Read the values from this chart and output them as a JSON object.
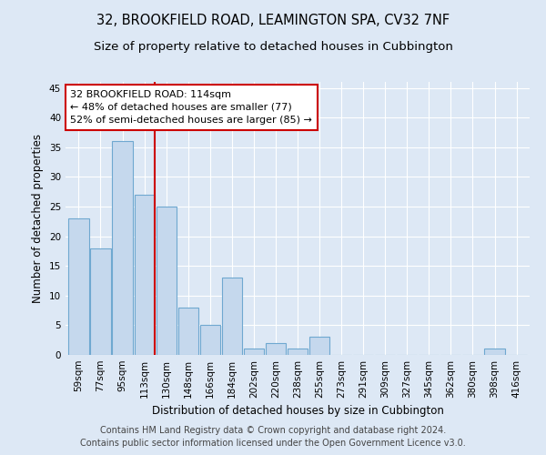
{
  "title1": "32, BROOKFIELD ROAD, LEAMINGTON SPA, CV32 7NF",
  "title2": "Size of property relative to detached houses in Cubbington",
  "xlabel": "Distribution of detached houses by size in Cubbington",
  "ylabel": "Number of detached properties",
  "categories": [
    "59sqm",
    "77sqm",
    "95sqm",
    "113sqm",
    "130sqm",
    "148sqm",
    "166sqm",
    "184sqm",
    "202sqm",
    "220sqm",
    "238sqm",
    "255sqm",
    "273sqm",
    "291sqm",
    "309sqm",
    "327sqm",
    "345sqm",
    "362sqm",
    "380sqm",
    "398sqm",
    "416sqm"
  ],
  "values": [
    23,
    18,
    36,
    27,
    25,
    8,
    5,
    13,
    1,
    2,
    1,
    3,
    0,
    0,
    0,
    0,
    0,
    0,
    0,
    1,
    0
  ],
  "bar_color": "#c5d8ed",
  "bar_edge_color": "#6fa8d0",
  "background_color": "#dde8f5",
  "grid_color": "#ffffff",
  "red_line_index": 3,
  "annotation_line1": "32 BROOKFIELD ROAD: 114sqm",
  "annotation_line2": "← 48% of detached houses are smaller (77)",
  "annotation_line3": "52% of semi-detached houses are larger (85) →",
  "annotation_box_color": "#ffffff",
  "annotation_box_edge": "#cc0000",
  "red_line_color": "#cc0000",
  "ylim": [
    0,
    46
  ],
  "yticks": [
    0,
    5,
    10,
    15,
    20,
    25,
    30,
    35,
    40,
    45
  ],
  "footer1": "Contains HM Land Registry data © Crown copyright and database right 2024.",
  "footer2": "Contains public sector information licensed under the Open Government Licence v3.0.",
  "title1_fontsize": 10.5,
  "title2_fontsize": 9.5,
  "xlabel_fontsize": 8.5,
  "ylabel_fontsize": 8.5,
  "tick_fontsize": 7.5,
  "annotation_fontsize": 8,
  "footer_fontsize": 7
}
